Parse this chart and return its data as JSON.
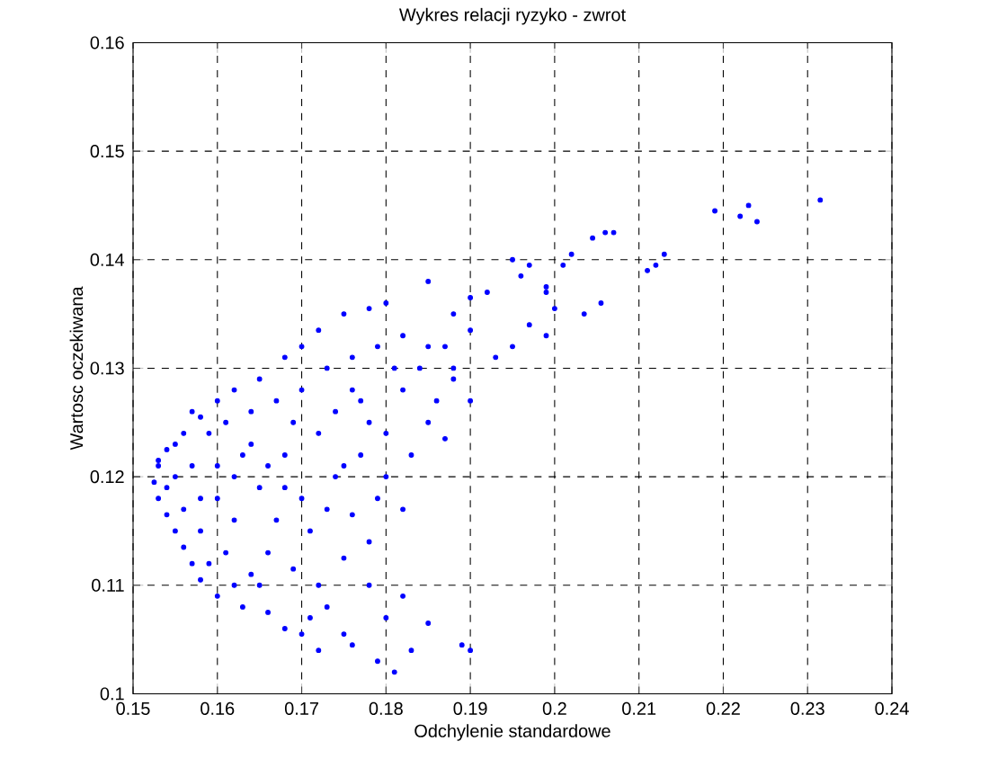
{
  "chart_data": {
    "type": "scatter",
    "title": "Wykres relacji ryzyko - zwrot",
    "xlabel": "Odchylenie standardowe",
    "ylabel": "Wartosc oczekiwana",
    "xlim": [
      0.15,
      0.24
    ],
    "xticks": [
      0.15,
      0.16,
      0.17,
      0.18,
      0.19,
      0.2,
      0.21,
      0.22,
      0.23,
      0.24
    ],
    "ylim": [
      0.1,
      0.16
    ],
    "yticks": [
      0.1,
      0.11,
      0.12,
      0.13,
      0.14,
      0.15,
      0.16
    ],
    "grid": true,
    "series": [
      {
        "color": "#0000ff",
        "x": [
          0.2315,
          0.224,
          0.223,
          0.222,
          0.219,
          0.213,
          0.212,
          0.211,
          0.206,
          0.207,
          0.2045,
          0.202,
          0.201,
          0.199,
          0.197,
          0.196,
          0.195,
          0.2,
          0.199,
          0.2055,
          0.2035,
          0.192,
          0.19,
          0.188,
          0.185,
          0.19,
          0.193,
          0.188,
          0.186,
          0.185,
          0.182,
          0.18,
          0.178,
          0.175,
          0.172,
          0.17,
          0.168,
          0.165,
          0.162,
          0.16,
          0.158,
          0.156,
          0.154,
          0.153,
          0.1525,
          0.153,
          0.154,
          0.155,
          0.156,
          0.157,
          0.158,
          0.16,
          0.163,
          0.166,
          0.168,
          0.17,
          0.172,
          0.176,
          0.179,
          0.181,
          0.183,
          0.18,
          0.175,
          0.189,
          0.19,
          0.185,
          0.182,
          0.178,
          0.175,
          0.172,
          0.169,
          0.176,
          0.18,
          0.178,
          0.175,
          0.172,
          0.17,
          0.168,
          0.165,
          0.162,
          0.163,
          0.16,
          0.158,
          0.157,
          0.159,
          0.161,
          0.164,
          0.167,
          0.17,
          0.173,
          0.176,
          0.179,
          0.182,
          0.185,
          0.183,
          0.187,
          0.188,
          0.19,
          0.195,
          0.197,
          0.199,
          0.177,
          0.174,
          0.171,
          0.166,
          0.164,
          0.167,
          0.169,
          0.155,
          0.156,
          0.154,
          0.158,
          0.161,
          0.16,
          0.162,
          0.164,
          0.166,
          0.168,
          0.173,
          0.174,
          0.177,
          0.18,
          0.181,
          0.184,
          0.187,
          0.173,
          0.171,
          0.165,
          0.162,
          0.159,
          0.157,
          0.155,
          0.153,
          0.176,
          0.179,
          0.182,
          0.178
        ],
        "values": [
          0.1455,
          0.1435,
          0.145,
          0.144,
          0.1445,
          0.1405,
          0.1395,
          0.139,
          0.1425,
          0.1425,
          0.142,
          0.1405,
          0.1395,
          0.1375,
          0.1395,
          0.1385,
          0.14,
          0.1355,
          0.133,
          0.136,
          0.135,
          0.137,
          0.1365,
          0.135,
          0.138,
          0.1335,
          0.131,
          0.13,
          0.127,
          0.132,
          0.133,
          0.136,
          0.1355,
          0.135,
          0.1335,
          0.132,
          0.131,
          0.129,
          0.128,
          0.127,
          0.1255,
          0.124,
          0.1225,
          0.121,
          0.1195,
          0.118,
          0.1165,
          0.115,
          0.1135,
          0.112,
          0.1105,
          0.109,
          0.108,
          0.1075,
          0.106,
          0.1055,
          0.104,
          0.1045,
          0.103,
          0.102,
          0.104,
          0.107,
          0.1055,
          0.1045,
          0.104,
          0.1065,
          0.109,
          0.11,
          0.1125,
          0.11,
          0.1115,
          0.1165,
          0.12,
          0.125,
          0.121,
          0.124,
          0.118,
          0.122,
          0.119,
          0.116,
          0.122,
          0.121,
          0.118,
          0.121,
          0.124,
          0.125,
          0.126,
          0.127,
          0.128,
          0.13,
          0.131,
          0.132,
          0.128,
          0.125,
          0.122,
          0.1235,
          0.129,
          0.127,
          0.132,
          0.134,
          0.137,
          0.127,
          0.126,
          0.115,
          0.113,
          0.111,
          0.116,
          0.125,
          0.12,
          0.117,
          0.119,
          0.115,
          0.113,
          0.118,
          0.12,
          0.123,
          0.121,
          0.119,
          0.117,
          0.12,
          0.122,
          0.124,
          0.13,
          0.13,
          0.132,
          0.108,
          0.107,
          0.11,
          0.11,
          0.112,
          0.126,
          0.123,
          0.1215,
          0.128,
          0.118,
          0.117,
          0.114
        ]
      }
    ]
  }
}
